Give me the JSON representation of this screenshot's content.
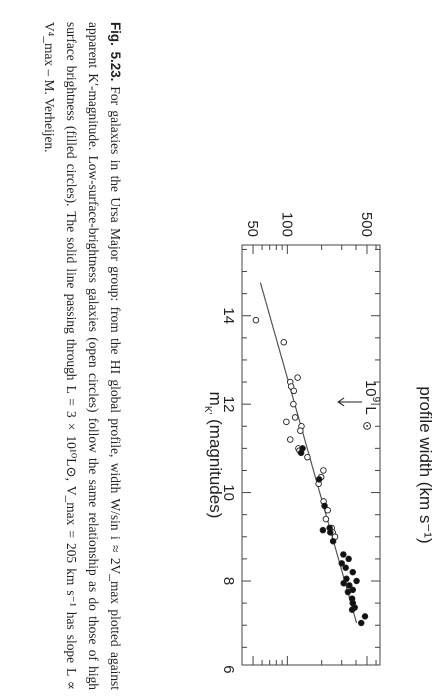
{
  "chart_data": {
    "type": "scatter",
    "xlabel": "m",
    "xlabel_sub": "K'",
    "xlabel_rest": " (magnitudes)",
    "ylabel": "profile width (km s⁻¹)",
    "x_reversed": true,
    "xlim": [
      15.6,
      6.1
    ],
    "ylim": [
      40,
      650
    ],
    "y_log": true,
    "x_ticks": [
      14,
      12,
      10,
      8,
      6
    ],
    "y_ticks": [
      50,
      100,
      500
    ],
    "series": [
      {
        "marker": "open-circle",
        "points": [
          [
            13.9,
            53
          ],
          [
            13.4,
            93
          ],
          [
            12.6,
            123
          ],
          [
            12.5,
            106
          ],
          [
            12.4,
            108
          ],
          [
            12.3,
            114
          ],
          [
            12.0,
            113
          ],
          [
            11.7,
            117
          ],
          [
            11.6,
            98
          ],
          [
            11.5,
            133
          ],
          [
            11.4,
            130
          ],
          [
            11.2,
            106
          ],
          [
            11.0,
            125
          ],
          [
            10.95,
            128
          ],
          [
            10.8,
            150
          ],
          [
            10.5,
            207
          ],
          [
            10.35,
            198
          ],
          [
            10.2,
            188
          ],
          [
            9.8,
            208
          ],
          [
            9.6,
            226
          ],
          [
            9.4,
            218
          ],
          [
            9.2,
            245
          ],
          [
            9.1,
            250
          ],
          [
            9.0,
            262
          ]
        ]
      },
      {
        "marker": "filled-circle",
        "points": [
          [
            11.0,
            136
          ],
          [
            10.9,
            132
          ],
          [
            10.3,
            190
          ],
          [
            9.7,
            212
          ],
          [
            9.2,
            235
          ],
          [
            9.15,
            205
          ],
          [
            9.1,
            238
          ],
          [
            8.9,
            252
          ],
          [
            8.6,
            310
          ],
          [
            8.5,
            345
          ],
          [
            8.4,
            300
          ],
          [
            8.3,
            325
          ],
          [
            8.2,
            375
          ],
          [
            8.05,
            330
          ],
          [
            8.0,
            405
          ],
          [
            7.95,
            312
          ],
          [
            7.9,
            350
          ],
          [
            7.8,
            375
          ],
          [
            7.75,
            340
          ],
          [
            7.6,
            370
          ],
          [
            7.5,
            375
          ],
          [
            7.4,
            390
          ],
          [
            7.35,
            370
          ],
          [
            7.2,
            480
          ],
          [
            7.05,
            445
          ]
        ]
      }
    ],
    "fit_line": {
      "x": [
        14.75,
        7.05
      ],
      "y": [
        58,
        405
      ]
    },
    "annotation": {
      "text": "10",
      "sup": "9",
      "unit": " L",
      "x": 12.05,
      "y": 370
    }
  },
  "caption": {
    "label": "Fig. 5.23.",
    "text": "For galaxies in the Ursa Major group: from the HI global profile, width W/sin i ≈ 2V_max plotted against apparent K′-magnitude. Low-surface-brightness galaxies (open circles) follow the same relationship as do those of high surface brightness (filled circles). The solid line passing through L = 3 × 10¹⁰L⊙, V_max = 205 km s⁻¹ has slope L ∝ V⁴_max – M. Verheijen."
  }
}
